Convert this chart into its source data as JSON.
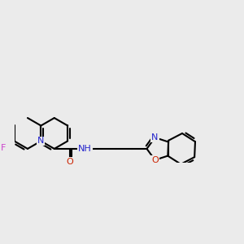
{
  "background_color": "#ebebeb",
  "bond_color": "#000000",
  "bond_width": 1.5,
  "dbo": 0.055,
  "figsize": [
    3.0,
    3.0
  ],
  "dpi": 100,
  "atom_labels": {
    "N_quin": {
      "label": "N",
      "color": "#2222cc"
    },
    "F": {
      "label": "F",
      "color": "#cc44cc"
    },
    "O_amid": {
      "label": "O",
      "color": "#cc2200"
    },
    "NH": {
      "label": "NH",
      "color": "#2222cc"
    },
    "N_bxz": {
      "label": "N",
      "color": "#2222cc"
    },
    "O_bxz": {
      "label": "O",
      "color": "#cc2200"
    }
  },
  "fontsize": 8.0
}
